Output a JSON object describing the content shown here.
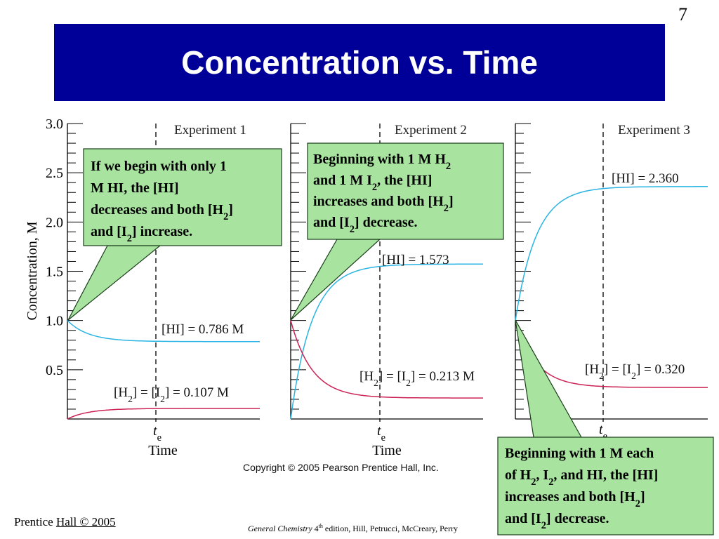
{
  "slide": {
    "number": "7",
    "title": "Concentration vs. Time"
  },
  "footer": {
    "publisher_prefix": "Prentice ",
    "publisher_rest": "Hall © 2005",
    "book_title": "General Chemistry",
    "book_edition_num": "4",
    "book_edition_suffix": "th",
    "book_rest": " edition, Hill, Petrucci, McCreary, Perry"
  },
  "colors": {
    "title_band": "#000099",
    "hi_curve": "#2ab4e4",
    "h2_curve": "#cc2255",
    "callout_fill": "#a8e4a0",
    "callout_border": "#1a3d1a"
  },
  "chart_data": {
    "type": "line",
    "ylabel": "Concentration, M",
    "xlabel": "Time",
    "ylim": [
      0,
      3.0
    ],
    "yticks": [
      "3.0",
      "2.5",
      "2.0",
      "1.5",
      "1.0",
      "0.5"
    ],
    "xtick_label": "t",
    "xtick_subscript": "e",
    "copyright": "Copyright © 2005 Pearson Prentice Hall, Inc.",
    "panels": [
      {
        "title": "Experiment 1",
        "series": [
          {
            "name": "HI",
            "initial": 1.0,
            "equilibrium": 0.786,
            "label": "[HI] = 0.786 M"
          },
          {
            "name": "H2, I2",
            "initial": 0.0,
            "equilibrium": 0.107,
            "label_parts": [
              "[H",
              "2",
              "] = [I",
              "2",
              "] = 0.107 M"
            ]
          }
        ]
      },
      {
        "title": "Experiment 2",
        "series": [
          {
            "name": "HI",
            "initial": 0.0,
            "equilibrium": 1.573,
            "label": "[HI] = 1.573"
          },
          {
            "name": "H2, I2",
            "initial": 1.0,
            "equilibrium": 0.213,
            "label_parts": [
              "[H",
              "2",
              "] = [I",
              "2",
              "] = 0.213 M"
            ]
          }
        ]
      },
      {
        "title": "Experiment 3",
        "series": [
          {
            "name": "HI",
            "initial": 1.0,
            "equilibrium": 2.36,
            "label": "[HI] = 2.360"
          },
          {
            "name": "H2, I2",
            "initial": 1.0,
            "equilibrium": 0.32,
            "label_parts": [
              "[H",
              "2",
              "] = [I",
              "2",
              "] = 0.320"
            ]
          }
        ]
      }
    ]
  },
  "callouts": [
    {
      "lines": [
        [
          "If we begin with only 1"
        ],
        [
          "M HI, the [HI]"
        ],
        [
          "decreases and both [H",
          "2",
          "]"
        ],
        [
          "and [I",
          "2",
          "] increase."
        ]
      ]
    },
    {
      "lines": [
        [
          "Beginning with 1 M H",
          "2"
        ],
        [
          "and 1 M I",
          "2",
          ", the [HI]"
        ],
        [
          "increases and both [H",
          "2",
          "]"
        ],
        [
          "and [I",
          "2",
          "] decrease."
        ]
      ]
    },
    {
      "lines": [
        [
          "Beginning with 1 M each"
        ],
        [
          "of H",
          "2",
          ", I",
          "2",
          ", and HI, the [HI]"
        ],
        [
          "increases and both [H",
          "2",
          "]"
        ],
        [
          "and [I",
          "2",
          "] decrease."
        ]
      ]
    }
  ]
}
